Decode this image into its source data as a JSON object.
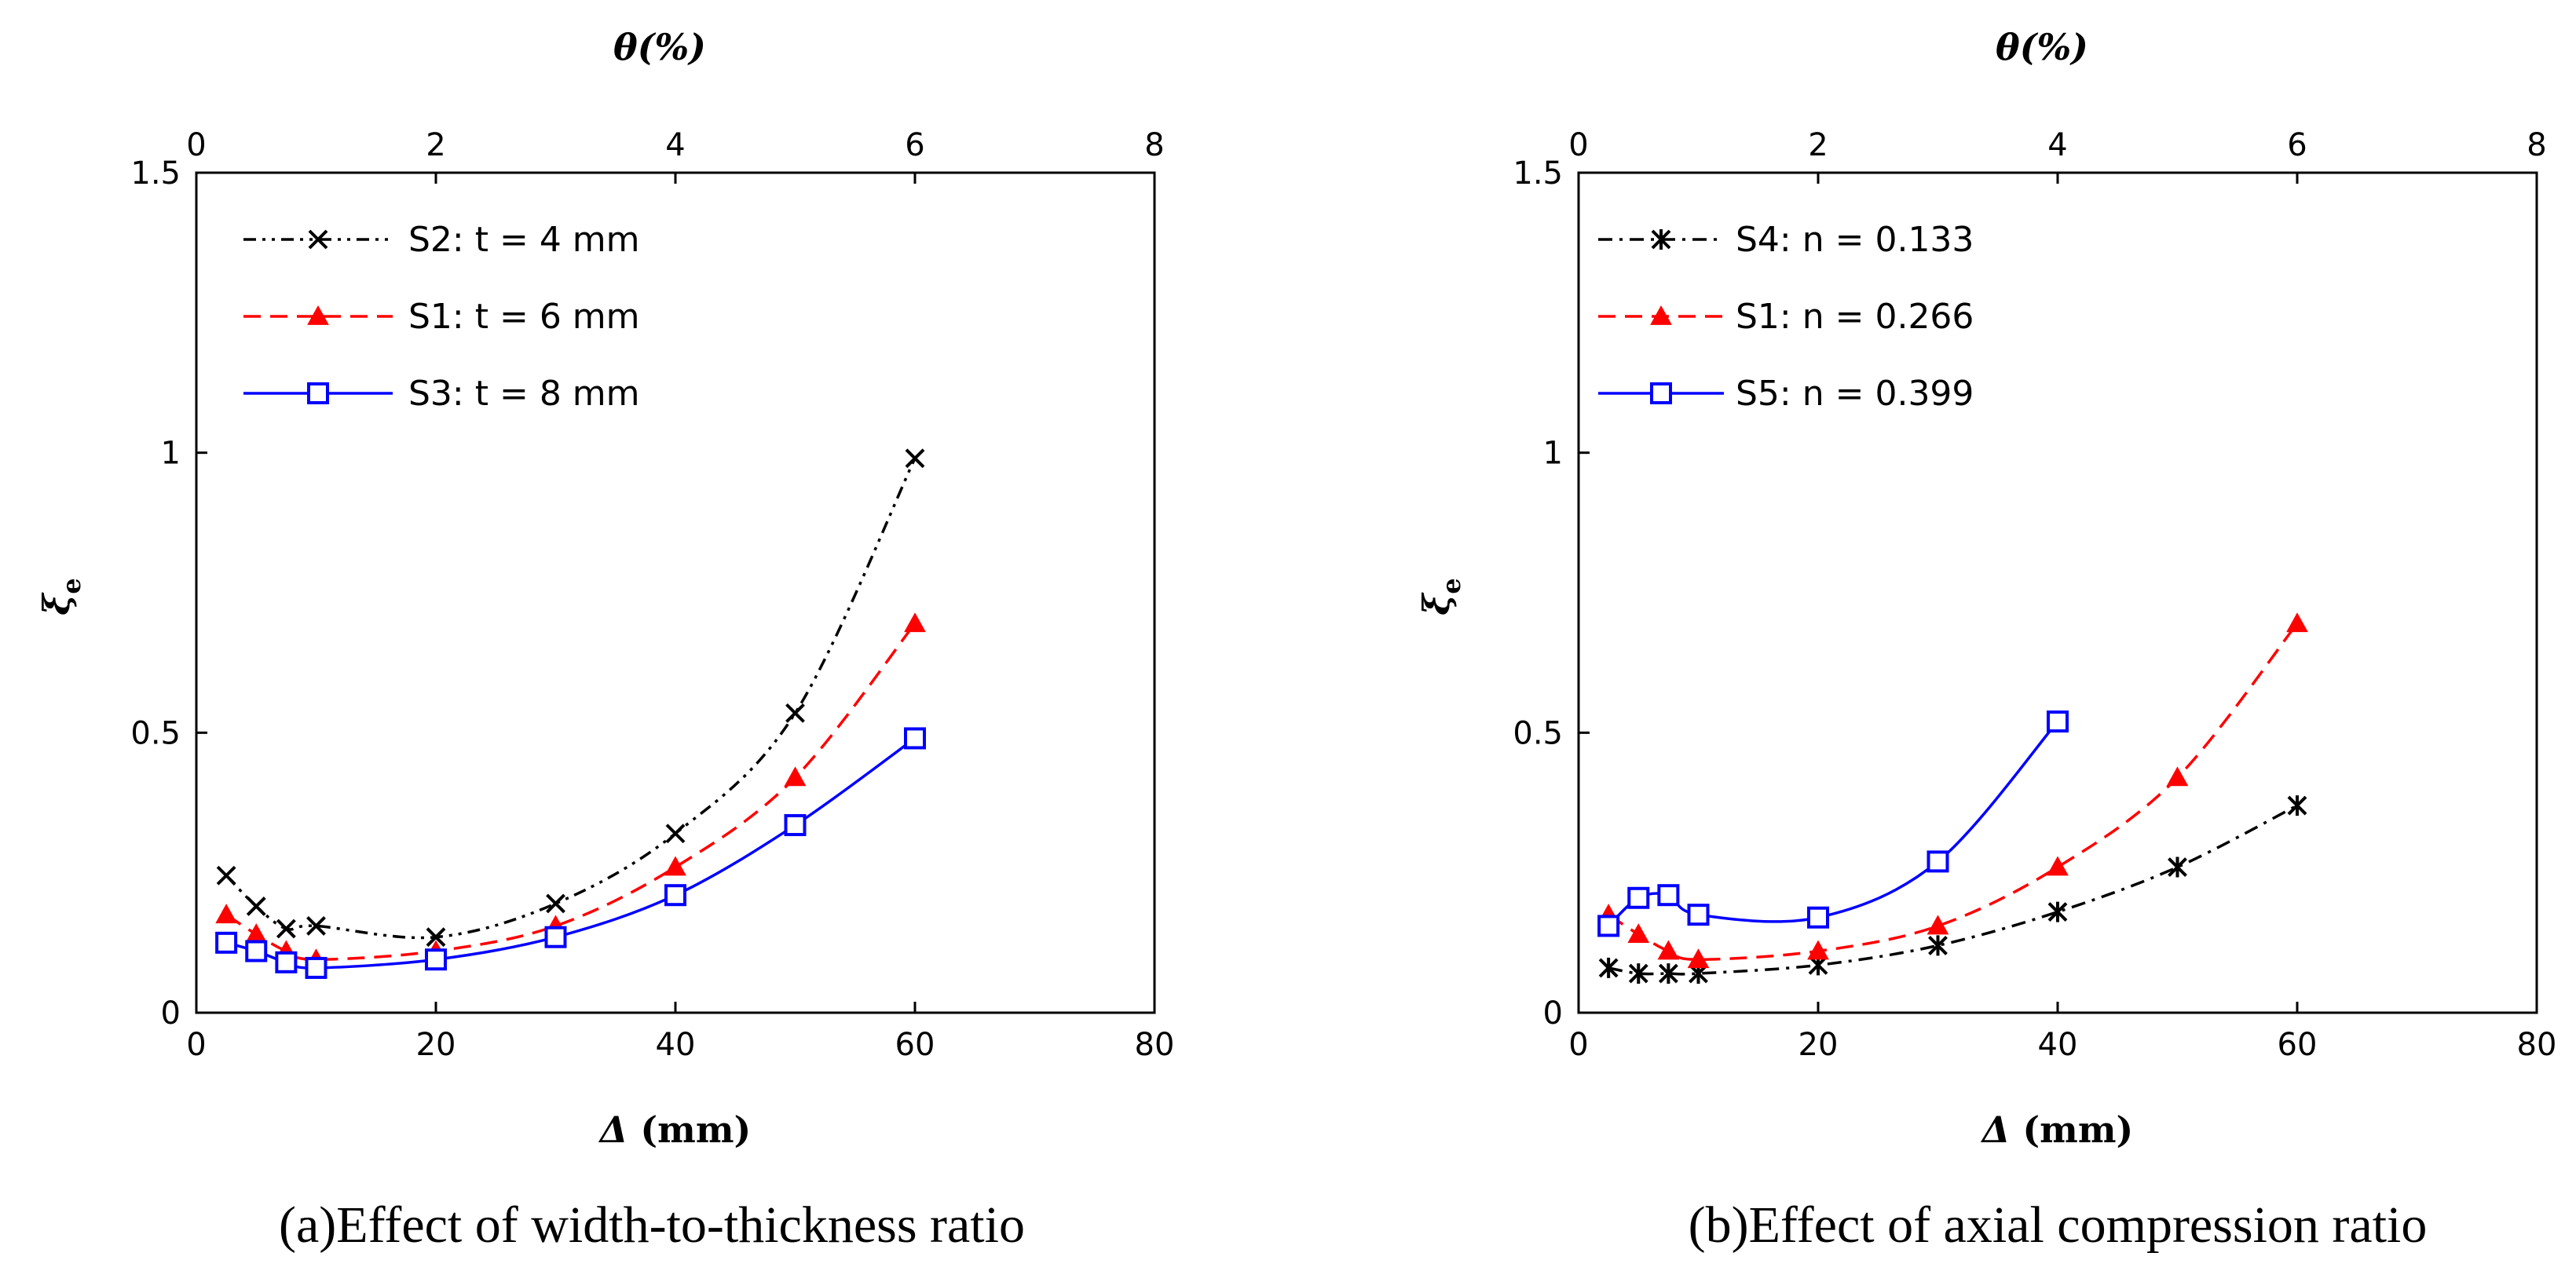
{
  "chart_data": [
    {
      "type": "line",
      "id": "a",
      "caption": "(a)Effect of width-to-thickness ratio",
      "xlabel_bottom": "Δ",
      "xlabel_bottom_unit": " (mm)",
      "xlabel_top": "θ(%)",
      "ylabel": "ξ",
      "ylabel_sub": "e",
      "xlim": [
        0,
        80
      ],
      "xticks": [
        0,
        20,
        40,
        60,
        80
      ],
      "xticklabels": [
        "0",
        "20",
        "40",
        "60",
        "80"
      ],
      "x2lim": [
        0,
        8
      ],
      "x2ticks": [
        0,
        2,
        4,
        6,
        8
      ],
      "x2ticklabels": [
        "0",
        "2",
        "4",
        "6",
        "8"
      ],
      "ylim": [
        0,
        1.5
      ],
      "yticks": [
        0,
        0.5,
        1,
        1.5
      ],
      "yticklabels": [
        "0",
        "0.5",
        "1",
        "1.5"
      ],
      "legend_position": "top-left",
      "series": [
        {
          "name": "S2:  t = 4 mm",
          "color": "#000000",
          "dash": "dashdotdot",
          "marker": "x",
          "x": [
            2.5,
            5,
            7.5,
            10,
            20,
            30,
            40,
            50,
            60
          ],
          "y": [
            0.245,
            0.19,
            0.15,
            0.155,
            0.135,
            0.195,
            0.32,
            0.535,
            0.99
          ]
        },
        {
          "name": "S1:  t = 6 mm",
          "color": "#ff0000",
          "dash": "dash",
          "marker": "triangle",
          "x": [
            2.5,
            5,
            7.5,
            10,
            20,
            30,
            40,
            50,
            60
          ],
          "y": [
            0.175,
            0.14,
            0.11,
            0.095,
            0.11,
            0.155,
            0.26,
            0.42,
            0.695
          ]
        },
        {
          "name": "S3:  t = 8 mm",
          "color": "#0000ff",
          "dash": "solid",
          "marker": "square",
          "x": [
            2.5,
            5,
            7.5,
            10,
            20,
            30,
            40,
            50,
            60
          ],
          "y": [
            0.125,
            0.11,
            0.09,
            0.08,
            0.095,
            0.135,
            0.21,
            0.335,
            0.49
          ]
        }
      ]
    },
    {
      "type": "line",
      "id": "b",
      "caption": "(b)Effect of axial compression ratio",
      "xlabel_bottom": "Δ",
      "xlabel_bottom_unit": " (mm)",
      "xlabel_top": "θ(%)",
      "ylabel": "ξ",
      "ylabel_sub": "e",
      "xlim": [
        0,
        80
      ],
      "xticks": [
        0,
        20,
        40,
        60,
        80
      ],
      "xticklabels": [
        "0",
        "20",
        "40",
        "60",
        "80"
      ],
      "x2lim": [
        0,
        8
      ],
      "x2ticks": [
        0,
        2,
        4,
        6,
        8
      ],
      "x2ticklabels": [
        "0",
        "2",
        "4",
        "6",
        "8"
      ],
      "ylim": [
        0,
        1.5
      ],
      "yticks": [
        0,
        0.5,
        1,
        1.5
      ],
      "yticklabels": [
        "0",
        "0.5",
        "1",
        "1.5"
      ],
      "legend_position": "top-left",
      "series": [
        {
          "name": "S4:  n = 0.133",
          "color": "#000000",
          "dash": "dashdot",
          "marker": "asterisk",
          "x": [
            2.5,
            5,
            7.5,
            10,
            20,
            30,
            40,
            50,
            60
          ],
          "y": [
            0.08,
            0.07,
            0.07,
            0.07,
            0.085,
            0.12,
            0.18,
            0.26,
            0.37
          ]
        },
        {
          "name": "S1:  n = 0.266",
          "color": "#ff0000",
          "dash": "dash",
          "marker": "triangle",
          "x": [
            2.5,
            5,
            7.5,
            10,
            20,
            30,
            40,
            50,
            60
          ],
          "y": [
            0.175,
            0.14,
            0.11,
            0.095,
            0.11,
            0.155,
            0.26,
            0.42,
            0.695
          ]
        },
        {
          "name": "S5:  n = 0.399",
          "color": "#0000ff",
          "dash": "solid",
          "marker": "square",
          "x": [
            2.5,
            5,
            7.5,
            10,
            20,
            30,
            40
          ],
          "y": [
            0.155,
            0.205,
            0.21,
            0.175,
            0.17,
            0.27,
            0.52
          ]
        }
      ]
    }
  ]
}
